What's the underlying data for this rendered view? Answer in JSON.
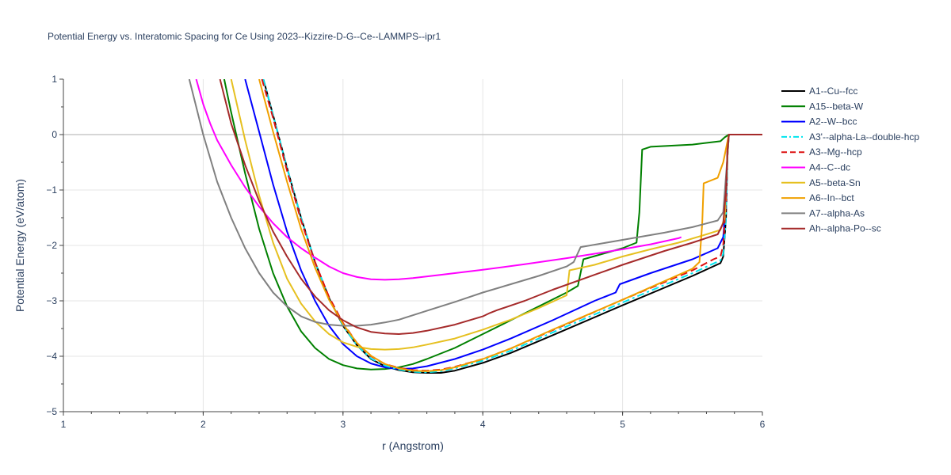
{
  "chart_data": {
    "type": "line",
    "title": "Potential Energy vs. Interatomic Spacing for Ce Using 2023--Kizzire-D-G--Ce--LAMMPS--ipr1",
    "xlabel": "r (Angstrom)",
    "ylabel": "Potential Energy (eV/atom)",
    "xlim": [
      1,
      6
    ],
    "ylim": [
      -5,
      1
    ],
    "x_ticks": [
      1,
      2,
      3,
      4,
      5,
      6
    ],
    "y_ticks": [
      1,
      0,
      -1,
      -2,
      -3,
      -4,
      -5
    ],
    "y_tick_labels": [
      "1",
      "0",
      "−1",
      "−2",
      "−3",
      "−4",
      "−5"
    ],
    "grid": true,
    "legend": "right",
    "series": [
      {
        "name": "A1--Cu--fcc",
        "color": "#000000",
        "dash": "solid",
        "points": [
          [
            2.43,
            1
          ],
          [
            2.5,
            0.35
          ],
          [
            2.6,
            -0.6
          ],
          [
            2.7,
            -1.5
          ],
          [
            2.8,
            -2.3
          ],
          [
            2.9,
            -2.95
          ],
          [
            3.0,
            -3.45
          ],
          [
            3.1,
            -3.8
          ],
          [
            3.2,
            -4.05
          ],
          [
            3.3,
            -4.18
          ],
          [
            3.4,
            -4.25
          ],
          [
            3.5,
            -4.29
          ],
          [
            3.6,
            -4.3
          ],
          [
            3.7,
            -4.3
          ],
          [
            3.8,
            -4.26
          ],
          [
            4.0,
            -4.12
          ],
          [
            4.2,
            -3.94
          ],
          [
            4.5,
            -3.62
          ],
          [
            5.0,
            -3.08
          ],
          [
            5.5,
            -2.55
          ],
          [
            5.7,
            -2.32
          ],
          [
            5.72,
            -2.2
          ],
          [
            5.74,
            -1.5
          ],
          [
            5.75,
            -0.4
          ],
          [
            5.76,
            0
          ],
          [
            6.0,
            0
          ]
        ]
      },
      {
        "name": "A15--beta-W",
        "color": "#008000",
        "dash": "solid",
        "points": [
          [
            2.15,
            1
          ],
          [
            2.2,
            0.4
          ],
          [
            2.3,
            -0.7
          ],
          [
            2.4,
            -1.7
          ],
          [
            2.5,
            -2.5
          ],
          [
            2.6,
            -3.1
          ],
          [
            2.7,
            -3.55
          ],
          [
            2.8,
            -3.85
          ],
          [
            2.9,
            -4.05
          ],
          [
            3.0,
            -4.16
          ],
          [
            3.1,
            -4.22
          ],
          [
            3.2,
            -4.24
          ],
          [
            3.3,
            -4.23
          ],
          [
            3.4,
            -4.2
          ],
          [
            3.5,
            -4.14
          ],
          [
            3.6,
            -4.05
          ],
          [
            3.8,
            -3.85
          ],
          [
            4.0,
            -3.6
          ],
          [
            4.2,
            -3.35
          ],
          [
            4.4,
            -3.1
          ],
          [
            4.6,
            -2.85
          ],
          [
            4.68,
            -2.73
          ],
          [
            4.72,
            -2.25
          ],
          [
            5.0,
            -2.05
          ],
          [
            5.1,
            -1.95
          ],
          [
            5.12,
            -1.4
          ],
          [
            5.14,
            -0.27
          ],
          [
            5.2,
            -0.22
          ],
          [
            5.5,
            -0.18
          ],
          [
            5.7,
            -0.12
          ],
          [
            5.73,
            -0.05
          ],
          [
            5.76,
            0
          ],
          [
            6.0,
            0
          ]
        ]
      },
      {
        "name": "A2--W--bcc",
        "color": "#0000ff",
        "dash": "solid",
        "points": [
          [
            2.3,
            1
          ],
          [
            2.4,
            0.05
          ],
          [
            2.5,
            -0.9
          ],
          [
            2.6,
            -1.75
          ],
          [
            2.7,
            -2.45
          ],
          [
            2.8,
            -3.0
          ],
          [
            2.9,
            -3.45
          ],
          [
            3.0,
            -3.78
          ],
          [
            3.1,
            -4.0
          ],
          [
            3.2,
            -4.13
          ],
          [
            3.3,
            -4.2
          ],
          [
            3.4,
            -4.23
          ],
          [
            3.5,
            -4.22
          ],
          [
            3.6,
            -4.18
          ],
          [
            3.8,
            -4.05
          ],
          [
            4.0,
            -3.88
          ],
          [
            4.2,
            -3.68
          ],
          [
            4.5,
            -3.35
          ],
          [
            4.8,
            -3.0
          ],
          [
            4.95,
            -2.85
          ],
          [
            4.98,
            -2.7
          ],
          [
            5.2,
            -2.5
          ],
          [
            5.5,
            -2.25
          ],
          [
            5.68,
            -2.05
          ],
          [
            5.72,
            -1.85
          ],
          [
            5.74,
            -1.2
          ],
          [
            5.75,
            -0.3
          ],
          [
            5.76,
            0
          ],
          [
            6.0,
            0
          ]
        ]
      },
      {
        "name": "A3'--alpha-La--double-hcp",
        "color": "#00e5ee",
        "dash": "dashdot",
        "points": [
          [
            2.43,
            1
          ],
          [
            2.5,
            0.35
          ],
          [
            2.6,
            -0.6
          ],
          [
            2.7,
            -1.5
          ],
          [
            2.8,
            -2.3
          ],
          [
            2.9,
            -2.95
          ],
          [
            3.0,
            -3.45
          ],
          [
            3.1,
            -3.8
          ],
          [
            3.2,
            -4.04
          ],
          [
            3.3,
            -4.17
          ],
          [
            3.4,
            -4.24
          ],
          [
            3.5,
            -4.28
          ],
          [
            3.6,
            -4.29
          ],
          [
            3.7,
            -4.27
          ],
          [
            3.8,
            -4.22
          ],
          [
            4.0,
            -4.08
          ],
          [
            4.2,
            -3.9
          ],
          [
            4.5,
            -3.57
          ],
          [
            5.0,
            -3.03
          ],
          [
            5.5,
            -2.5
          ],
          [
            5.7,
            -2.27
          ],
          [
            5.72,
            -2.15
          ],
          [
            5.74,
            -1.5
          ],
          [
            5.75,
            -0.4
          ],
          [
            5.76,
            0
          ],
          [
            6.0,
            0
          ]
        ]
      },
      {
        "name": "A3--Mg--hcp",
        "color": "#dd1111",
        "dash": "dash",
        "points": [
          [
            2.42,
            1
          ],
          [
            2.5,
            0.3
          ],
          [
            2.6,
            -0.65
          ],
          [
            2.7,
            -1.55
          ],
          [
            2.8,
            -2.3
          ],
          [
            2.9,
            -2.93
          ],
          [
            3.0,
            -3.4
          ],
          [
            3.1,
            -3.76
          ],
          [
            3.2,
            -4.0
          ],
          [
            3.3,
            -4.14
          ],
          [
            3.4,
            -4.21
          ],
          [
            3.5,
            -4.25
          ],
          [
            3.6,
            -4.26
          ],
          [
            3.7,
            -4.24
          ],
          [
            3.8,
            -4.19
          ],
          [
            4.0,
            -4.05
          ],
          [
            4.2,
            -3.86
          ],
          [
            4.5,
            -3.53
          ],
          [
            5.0,
            -2.98
          ],
          [
            5.5,
            -2.45
          ],
          [
            5.65,
            -2.25
          ],
          [
            5.7,
            -2.2
          ],
          [
            5.72,
            -2.0
          ],
          [
            5.74,
            -1.2
          ],
          [
            5.75,
            -0.3
          ],
          [
            5.76,
            0
          ],
          [
            6.0,
            0
          ]
        ]
      },
      {
        "name": "A4--C--dc",
        "color": "#ff00ff",
        "dash": "solid",
        "points": [
          [
            1.95,
            1
          ],
          [
            2.0,
            0.55
          ],
          [
            2.05,
            0.2
          ],
          [
            2.1,
            -0.1
          ],
          [
            2.2,
            -0.55
          ],
          [
            2.3,
            -0.95
          ],
          [
            2.4,
            -1.3
          ],
          [
            2.5,
            -1.6
          ],
          [
            2.6,
            -1.85
          ],
          [
            2.7,
            -2.05
          ],
          [
            2.8,
            -2.22
          ],
          [
            2.9,
            -2.38
          ],
          [
            3.0,
            -2.5
          ],
          [
            3.1,
            -2.57
          ],
          [
            3.2,
            -2.61
          ],
          [
            3.3,
            -2.62
          ],
          [
            3.4,
            -2.61
          ],
          [
            3.5,
            -2.59
          ],
          [
            3.7,
            -2.53
          ],
          [
            4.0,
            -2.44
          ],
          [
            4.3,
            -2.34
          ],
          [
            4.6,
            -2.23
          ],
          [
            5.0,
            -2.07
          ],
          [
            5.2,
            -1.98
          ],
          [
            5.4,
            -1.87
          ],
          [
            5.42,
            -1.85
          ]
        ]
      },
      {
        "name": "A5--beta-Sn",
        "color": "#e6c020",
        "dash": "solid",
        "points": [
          [
            2.2,
            1
          ],
          [
            2.3,
            -0.1
          ],
          [
            2.4,
            -1.1
          ],
          [
            2.5,
            -1.95
          ],
          [
            2.6,
            -2.6
          ],
          [
            2.7,
            -3.05
          ],
          [
            2.8,
            -3.37
          ],
          [
            2.9,
            -3.6
          ],
          [
            3.0,
            -3.75
          ],
          [
            3.1,
            -3.83
          ],
          [
            3.2,
            -3.87
          ],
          [
            3.3,
            -3.88
          ],
          [
            3.4,
            -3.87
          ],
          [
            3.5,
            -3.84
          ],
          [
            3.6,
            -3.79
          ],
          [
            3.8,
            -3.68
          ],
          [
            4.0,
            -3.52
          ],
          [
            4.2,
            -3.34
          ],
          [
            4.4,
            -3.13
          ],
          [
            4.6,
            -2.9
          ],
          [
            4.62,
            -2.45
          ],
          [
            4.8,
            -2.35
          ],
          [
            5.0,
            -2.2
          ],
          [
            5.2,
            -2.07
          ],
          [
            5.4,
            -1.95
          ],
          [
            5.6,
            -1.8
          ],
          [
            5.7,
            -1.72
          ],
          [
            5.73,
            -1.5
          ],
          [
            5.75,
            -0.4
          ],
          [
            5.76,
            0
          ],
          [
            6.0,
            0
          ]
        ]
      },
      {
        "name": "A6--In--bct",
        "color": "#f0a000",
        "dash": "solid",
        "points": [
          [
            2.4,
            1
          ],
          [
            2.5,
            0.05
          ],
          [
            2.6,
            -0.85
          ],
          [
            2.7,
            -1.7
          ],
          [
            2.8,
            -2.4
          ],
          [
            2.9,
            -2.98
          ],
          [
            3.0,
            -3.42
          ],
          [
            3.1,
            -3.76
          ],
          [
            3.2,
            -3.99
          ],
          [
            3.3,
            -4.14
          ],
          [
            3.4,
            -4.22
          ],
          [
            3.5,
            -4.26
          ],
          [
            3.6,
            -4.27
          ],
          [
            3.7,
            -4.25
          ],
          [
            3.8,
            -4.2
          ],
          [
            4.0,
            -4.05
          ],
          [
            4.2,
            -3.86
          ],
          [
            4.5,
            -3.52
          ],
          [
            5.0,
            -2.98
          ],
          [
            5.5,
            -2.42
          ],
          [
            5.55,
            -2.3
          ],
          [
            5.57,
            -1.6
          ],
          [
            5.58,
            -0.88
          ],
          [
            5.68,
            -0.78
          ],
          [
            5.72,
            -0.5
          ],
          [
            5.76,
            0
          ],
          [
            6.0,
            0
          ]
        ]
      },
      {
        "name": "A7--alpha-As",
        "color": "#808080",
        "dash": "solid",
        "points": [
          [
            1.9,
            1
          ],
          [
            2.0,
            0
          ],
          [
            2.1,
            -0.85
          ],
          [
            2.2,
            -1.5
          ],
          [
            2.3,
            -2.05
          ],
          [
            2.4,
            -2.5
          ],
          [
            2.5,
            -2.85
          ],
          [
            2.6,
            -3.1
          ],
          [
            2.7,
            -3.28
          ],
          [
            2.8,
            -3.38
          ],
          [
            2.9,
            -3.43
          ],
          [
            3.0,
            -3.45
          ],
          [
            3.1,
            -3.45
          ],
          [
            3.2,
            -3.43
          ],
          [
            3.3,
            -3.39
          ],
          [
            3.4,
            -3.34
          ],
          [
            3.5,
            -3.26
          ],
          [
            3.6,
            -3.18
          ],
          [
            3.8,
            -3.02
          ],
          [
            4.0,
            -2.85
          ],
          [
            4.2,
            -2.7
          ],
          [
            4.4,
            -2.55
          ],
          [
            4.6,
            -2.38
          ],
          [
            4.65,
            -2.3
          ],
          [
            4.7,
            -2.03
          ],
          [
            5.0,
            -1.9
          ],
          [
            5.3,
            -1.77
          ],
          [
            5.5,
            -1.67
          ],
          [
            5.68,
            -1.55
          ],
          [
            5.72,
            -1.4
          ],
          [
            5.75,
            -0.4
          ],
          [
            5.76,
            0
          ],
          [
            6.0,
            0
          ]
        ]
      },
      {
        "name": "Ah--alpha-Po--sc",
        "color": "#a52a2a",
        "dash": "solid",
        "points": [
          [
            2.12,
            1
          ],
          [
            2.2,
            0.2
          ],
          [
            2.3,
            -0.55
          ],
          [
            2.4,
            -1.2
          ],
          [
            2.5,
            -1.75
          ],
          [
            2.6,
            -2.2
          ],
          [
            2.7,
            -2.6
          ],
          [
            2.8,
            -2.92
          ],
          [
            2.9,
            -3.17
          ],
          [
            3.0,
            -3.35
          ],
          [
            3.1,
            -3.48
          ],
          [
            3.2,
            -3.56
          ],
          [
            3.3,
            -3.59
          ],
          [
            3.4,
            -3.6
          ],
          [
            3.5,
            -3.58
          ],
          [
            3.6,
            -3.54
          ],
          [
            3.8,
            -3.43
          ],
          [
            4.0,
            -3.28
          ],
          [
            4.05,
            -3.22
          ],
          [
            4.1,
            -3.17
          ],
          [
            4.3,
            -3.0
          ],
          [
            4.5,
            -2.8
          ],
          [
            4.8,
            -2.53
          ],
          [
            5.0,
            -2.35
          ],
          [
            5.3,
            -2.1
          ],
          [
            5.5,
            -1.95
          ],
          [
            5.68,
            -1.8
          ],
          [
            5.72,
            -1.6
          ],
          [
            5.74,
            -1.0
          ],
          [
            5.75,
            -0.3
          ],
          [
            5.76,
            0
          ],
          [
            6.0,
            0
          ]
        ]
      }
    ]
  }
}
